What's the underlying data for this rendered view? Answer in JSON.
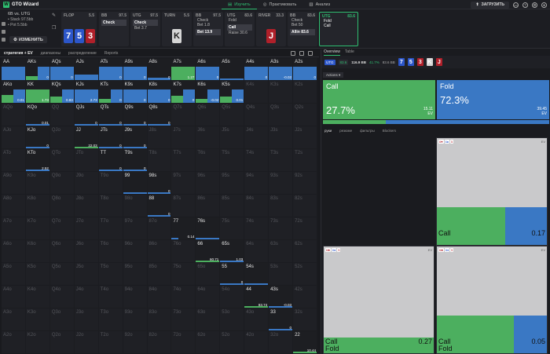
{
  "app": {
    "title": "GTO Wizard"
  },
  "nav": [
    {
      "label": "Изучить",
      "active": true
    },
    {
      "label": "Практиковать",
      "active": false
    },
    {
      "label": "Анализ",
      "active": false
    }
  ],
  "topright": {
    "upload_label": "ЗАГРУЗИТЬ"
  },
  "stack": {
    "title": "6B vs. UTG",
    "line1": "• Stack 97.5bb",
    "line2": "• Pot 5.5bb",
    "change_label": "ИЗМЕНИТЬ"
  },
  "flop": {
    "label": "FLOP",
    "pot": "5.5",
    "cards": [
      "7",
      "5",
      "3"
    ]
  },
  "columns": [
    {
      "head": "BB",
      "amt": "97.5",
      "actions": [
        {
          "t": "Check",
          "cls": "hl"
        }
      ]
    },
    {
      "head": "UTG",
      "amt": "97.5",
      "actions": [
        {
          "t": "Check",
          "cls": "hl"
        },
        {
          "t": "Bet 3.7",
          "cls": "plain"
        }
      ]
    },
    {
      "head": "TURN",
      "amt": "5.5",
      "actions": []
    },
    {
      "head": "BB",
      "amt": "97.5",
      "actions": [
        {
          "t": "Check",
          "cls": "plain"
        },
        {
          "t": "Bet 1.8",
          "cls": "plain"
        },
        {
          "t": "Bet 13.9",
          "cls": "hl"
        }
      ]
    },
    {
      "head": "UTG",
      "amt": "83.6",
      "actions": [
        {
          "t": "Fold",
          "cls": "plain"
        },
        {
          "t": "Call",
          "cls": "hl"
        },
        {
          "t": "Raise 30.6",
          "cls": "plain"
        }
      ]
    },
    {
      "head": "RIVER",
      "amt": "33.3",
      "actions": []
    },
    {
      "head": "BB",
      "amt": "83.6",
      "actions": [
        {
          "t": "Check",
          "cls": "plain"
        },
        {
          "t": "Bet 50",
          "cls": "plain"
        },
        {
          "t": "Allin 83.6",
          "cls": "hl"
        }
      ]
    },
    {
      "head": "UTG",
      "amt": "83.6",
      "actions": [
        {
          "t": "Fold",
          "cls": "plain"
        },
        {
          "t": "Call",
          "cls": "plain"
        }
      ]
    }
  ],
  "turn_card": "K",
  "river_card": "J",
  "left_tabs": [
    "стратегия + EV",
    "диапазоны",
    "распределение",
    "Reports"
  ],
  "grid": [
    [
      "AA",
      "AKs",
      "AQs",
      "AJs",
      "ATs",
      "A9s",
      "A8s",
      "A7s",
      "A6s",
      "A5s",
      "A4s",
      "A3s",
      "A2s"
    ],
    [
      "AKo",
      "KK",
      "KQs",
      "KJs",
      "KTs",
      "K9s",
      "K8s",
      "K7s",
      "K6s",
      "K5s",
      "K4s",
      "K3s",
      "K2s"
    ],
    [
      "AQo",
      "KQo",
      "QQ",
      "QJs",
      "QTs",
      "Q9s",
      "Q8s",
      "Q7s",
      "Q6s",
      "Q5s",
      "Q4s",
      "Q3s",
      "Q2s"
    ],
    [
      "AJo",
      "KJo",
      "QJo",
      "JJ",
      "JTs",
      "J9s",
      "J8s",
      "J7s",
      "J6s",
      "J5s",
      "J4s",
      "J3s",
      "J2s"
    ],
    [
      "ATo",
      "KTo",
      "QTo",
      "JTo",
      "TT",
      "T9s",
      "T8s",
      "T7s",
      "T6s",
      "T5s",
      "T4s",
      "T3s",
      "T2s"
    ],
    [
      "A9o",
      "K9o",
      "Q9o",
      "J9o",
      "T9o",
      "99",
      "98s",
      "97s",
      "96s",
      "95s",
      "94s",
      "93s",
      "92s"
    ],
    [
      "A8o",
      "K8o",
      "Q8o",
      "J8o",
      "T8o",
      "98o",
      "88",
      "87s",
      "86s",
      "85s",
      "84s",
      "83s",
      "82s"
    ],
    [
      "A7o",
      "K7o",
      "Q7o",
      "J7o",
      "T7o",
      "97o",
      "87o",
      "77",
      "76s",
      "75s",
      "74s",
      "73s",
      "72s"
    ],
    [
      "A6o",
      "K6o",
      "Q6o",
      "J6o",
      "T6o",
      "96o",
      "86o",
      "76o",
      "66",
      "65s",
      "64s",
      "63s",
      "62s"
    ],
    [
      "A5o",
      "K5o",
      "Q5o",
      "J5o",
      "T5o",
      "95o",
      "85o",
      "75o",
      "65o",
      "55",
      "54s",
      "53s",
      "52s"
    ],
    [
      "A4o",
      "K4o",
      "Q4o",
      "J4o",
      "T4o",
      "94o",
      "84o",
      "74o",
      "64o",
      "54o",
      "44",
      "43s",
      "42s"
    ],
    [
      "A3o",
      "K3o",
      "Q3o",
      "J3o",
      "T3o",
      "93o",
      "83o",
      "73o",
      "63o",
      "53o",
      "43o",
      "33",
      "32s"
    ],
    [
      "A2o",
      "K2o",
      "Q2o",
      "J2o",
      "T2o",
      "92o",
      "82o",
      "72o",
      "62o",
      "52o",
      "42o",
      "32o",
      "22"
    ]
  ],
  "cells": {
    "AA": {
      "b": 1,
      "v": ""
    },
    "AKs": {
      "g": 0.28,
      "b": 1,
      "v": "0"
    },
    "AQs": {
      "b": 1,
      "v": "0"
    },
    "AJs": {
      "b": 0.4,
      "v": ""
    },
    "ATs": {
      "b": 1,
      "v": "0"
    },
    "A9s": {
      "b": 1,
      "v": "0"
    },
    "A8s": {
      "b": 0.2,
      "v": "0"
    },
    "A7s": {
      "g": 1,
      "v": "1.27"
    },
    "A6s": {
      "b": 1,
      "v": "0"
    },
    "A5s": {
      "b": 0.1,
      "v": ""
    },
    "A4s": {
      "b": 1,
      "v": "0"
    },
    "A3s": {
      "b": 1,
      "v": "-0.02"
    },
    "A2s": {
      "b": 1,
      "v": "0"
    },
    "AKo": {
      "g": 0.6,
      "b": 1,
      "v": "0.01"
    },
    "KK": {
      "g": 1,
      "v": "1.73"
    },
    "KQs": {
      "g": 0.5,
      "b": 1,
      "v": "0.83"
    },
    "KJs": {
      "b": 1,
      "v": "2.73"
    },
    "KTs": {
      "g": 0.3,
      "b": 1,
      "v": "0"
    },
    "K9s": {
      "b": 1,
      "v": "0"
    },
    "K8s": {
      "b": 1,
      "v": "0"
    },
    "K7s": {
      "g": 0.55,
      "b": 1,
      "v": "0"
    },
    "K6s": {
      "g": 0.3,
      "b": 1,
      "v": "-0.02"
    },
    "K5s": {
      "g": 0.5,
      "b": 1,
      "v": "0.01"
    },
    "KQo": {
      "line": 1,
      "v": "0.01"
    },
    "QJs": {
      "line": 1,
      "v": "0"
    },
    "QTs": {
      "line": 1,
      "v": "0"
    },
    "Q9s": {
      "line": 1,
      "v": "0"
    },
    "Q8s": {
      "line": 1,
      "v": "0"
    },
    "KJo": {
      "line": 1,
      "v": "0"
    },
    "JJ": {
      "gline": 1,
      "v": "22.03"
    },
    "JTs": {
      "line": 1,
      "v": "0"
    },
    "J9s": {
      "line": 1,
      "v": "0"
    },
    "KTo": {
      "line": 1,
      "v": "2.52"
    },
    "TT": {
      "line": 1,
      "v": "0"
    },
    "T9s": {
      "line": 1,
      "v": "0"
    },
    "99": {
      "line": 1,
      "v": ""
    },
    "98s": {
      "line": 1,
      "v": "0"
    },
    "88": {
      "line": 1,
      "v": "0"
    },
    "77": {
      "line": 0.3,
      "v": "0.14"
    },
    "76s": {
      "line": 1,
      "v": ""
    },
    "66": {
      "gline": 1,
      "v": "60.71"
    },
    "65s": {
      "line": 1,
      "v": "1.03"
    },
    "55": {
      "line": 1,
      "v": "0"
    },
    "54s": {
      "line": 1,
      "v": ""
    },
    "44": {
      "gline": 1,
      "v": "83.74"
    },
    "43s": {
      "line": 1,
      "v": "-0.03"
    },
    "33": {
      "line": 1,
      "v": "0"
    },
    "22": {
      "gline": 1,
      "v": "10.44"
    }
  },
  "right": {
    "tabs": [
      "Overview",
      "Table"
    ],
    "info": {
      "pos": "UTG",
      "amt": "83.6",
      "pot": "116.9 BB",
      "pct": "41.7%",
      "side": "83.6 BB",
      "cards": [
        "7",
        "5",
        "3",
        "K",
        "J"
      ]
    },
    "actions_label": "Actions",
    "call": {
      "name": "Call",
      "pct": "27.7%",
      "freq": 0.277,
      "ev1": "15.11",
      "ev2": "EV"
    },
    "fold": {
      "name": "Fold",
      "pct": "72.3%",
      "ev1": "39.45",
      "ev2": "EV"
    },
    "subtabs": [
      "руки",
      "резюме",
      "фильтры",
      "Blockers"
    ],
    "sort_label": "сортир",
    "quads": [
      {
        "cards": [
          "6♥",
          "6♠",
          "5"
        ],
        "ev": "EV",
        "call": "Call",
        "fold": "",
        "val": "0.17",
        "green_h": 0.35,
        "green_w": 0.62
      },
      {
        "cards": [
          "6♣",
          "6♠",
          "5"
        ],
        "ev": "EV",
        "call": "Call",
        "fold": "Fold",
        "val": "0.27",
        "green_h": 0.15,
        "green_w": 1.0
      },
      {
        "cards": [
          "6♣",
          "6♦",
          "5"
        ],
        "ev": "EV",
        "call": "Call",
        "fold": "Fold",
        "val": "0.05",
        "green_h": 0.35,
        "green_w": 0.7
      }
    ]
  }
}
